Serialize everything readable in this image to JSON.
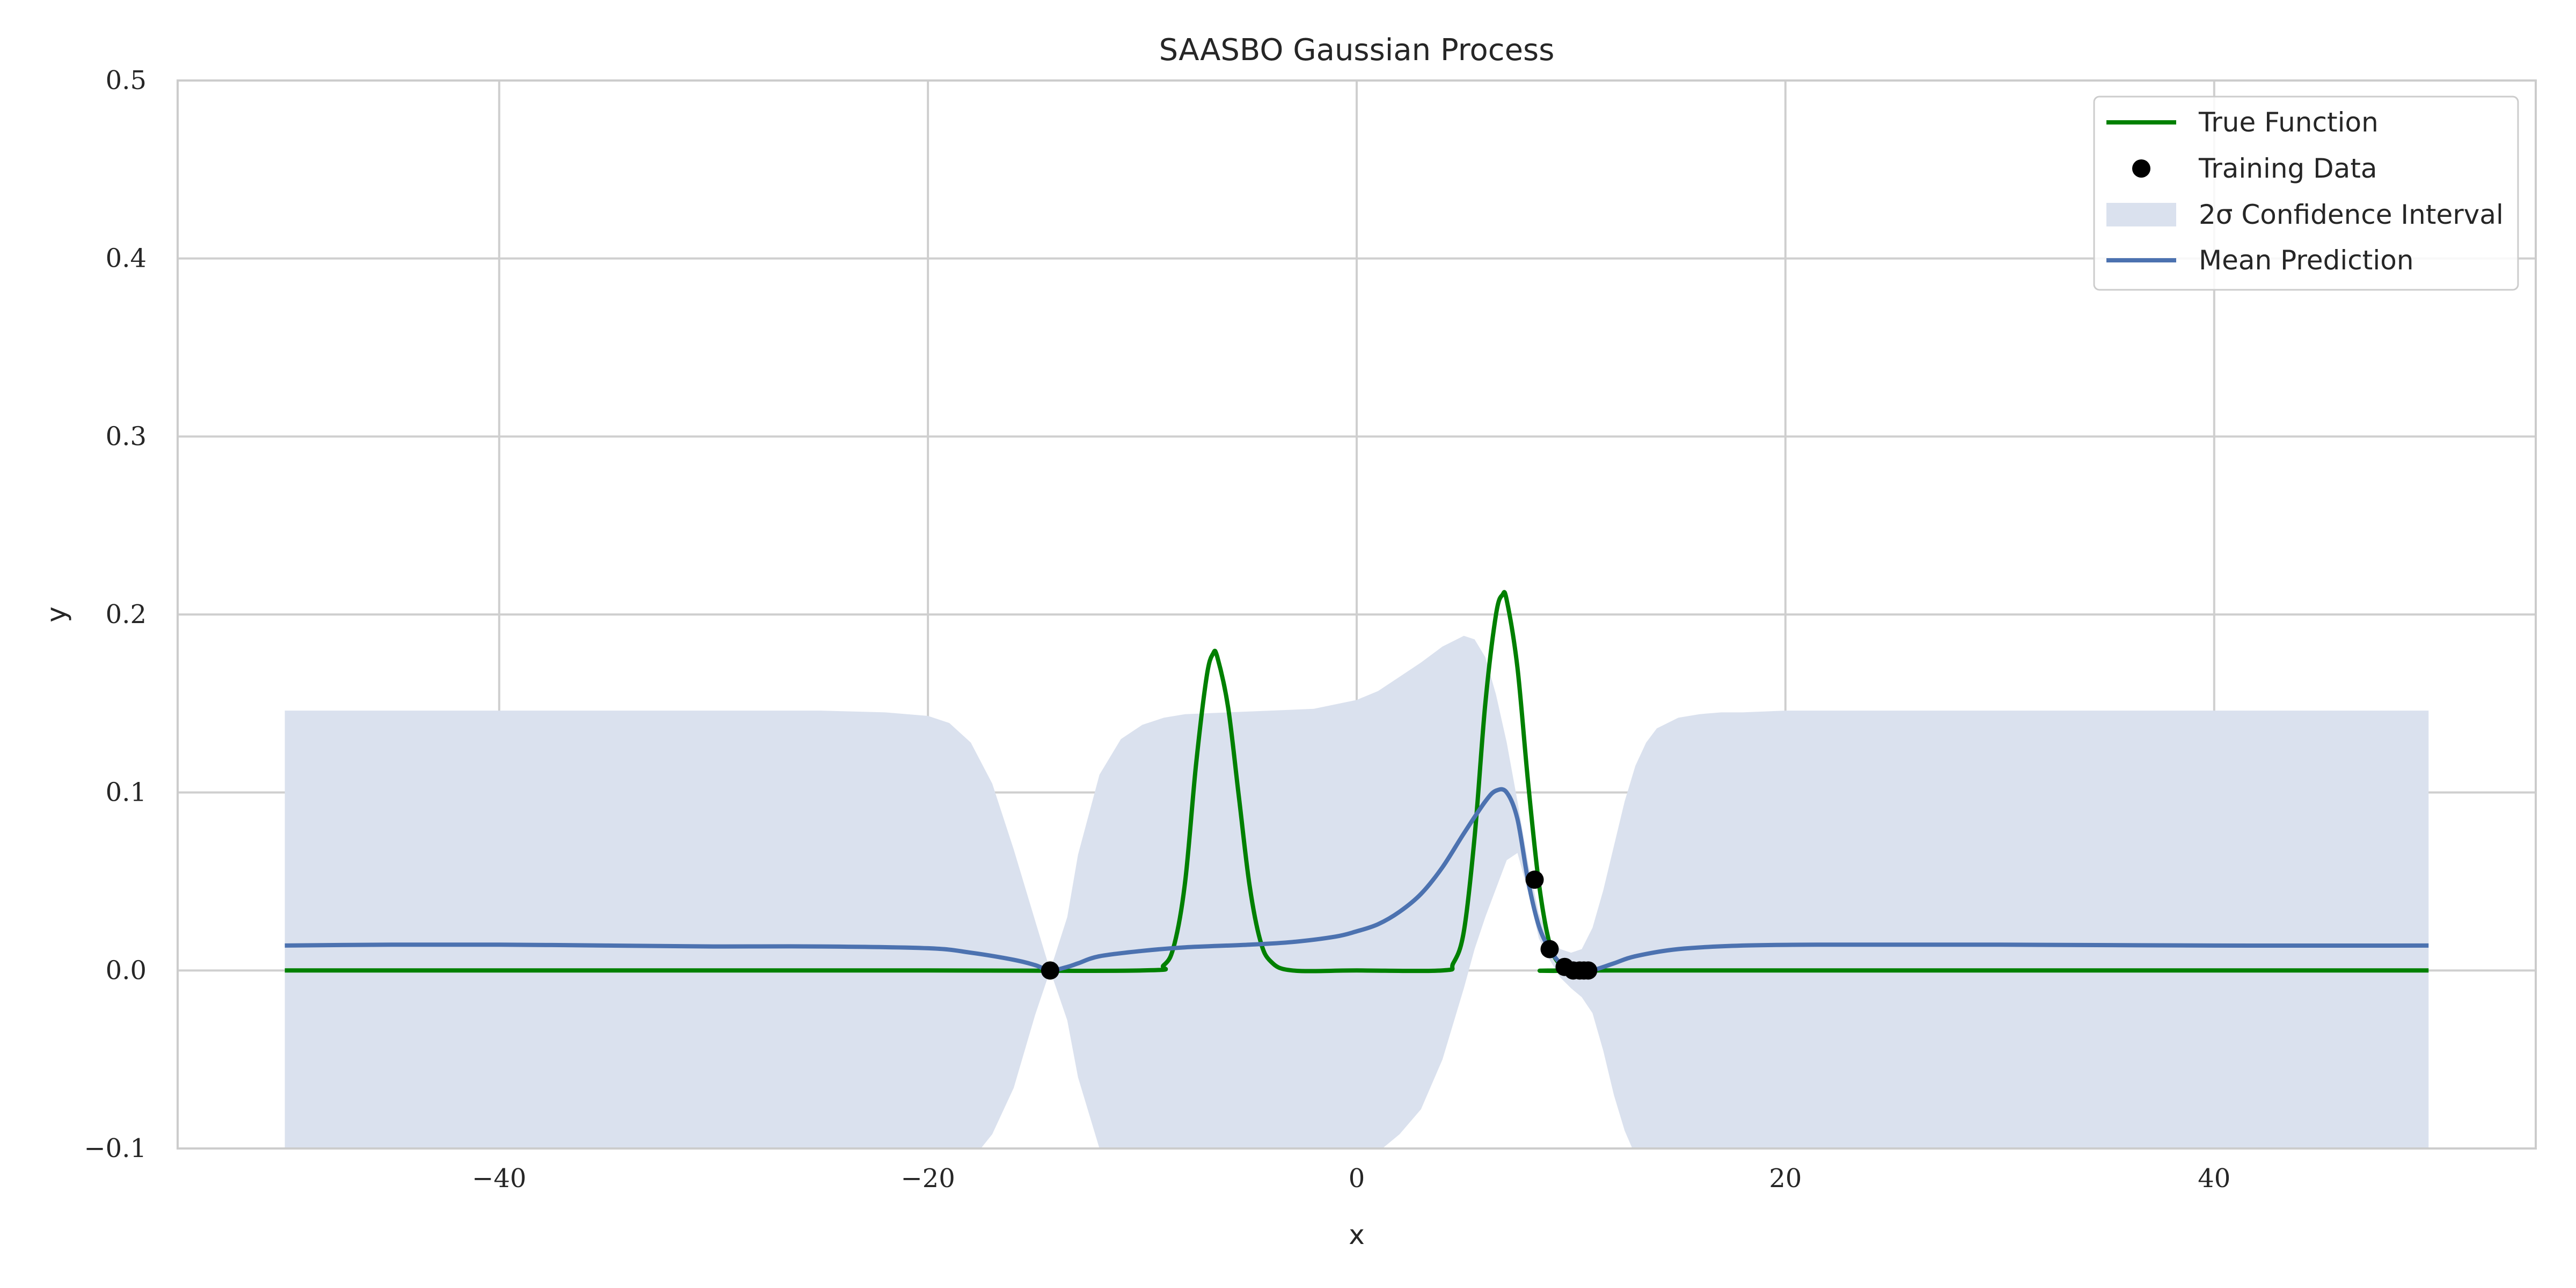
{
  "chart_data": {
    "type": "line",
    "title": "SAASBO Gaussian Process",
    "xlabel": "x",
    "ylabel": "y",
    "xlim": [
      -55,
      55
    ],
    "ylim": [
      -0.1,
      0.5
    ],
    "grid": true,
    "legend_position": "top-right",
    "x_ticks": [
      -40,
      -20,
      0,
      20,
      40
    ],
    "y_ticks": [
      -0.1,
      0.0,
      0.1,
      0.2,
      0.3,
      0.4,
      0.5
    ],
    "x_tick_labels": [
      "−40",
      "−20",
      "0",
      "20",
      "40"
    ],
    "y_tick_labels": [
      "−0.1",
      "0.0",
      "0.1",
      "0.2",
      "0.3",
      "0.4",
      "0.5"
    ],
    "colors": {
      "true_function": "#008000",
      "mean": "#4c72b0",
      "ci": "#dae1ee",
      "training": "#000000",
      "grid": "#cfcfcf",
      "spine": "#cccccc"
    },
    "legend": {
      "true_function": "True Function",
      "training": "Training Data",
      "ci": "2σ Confidence Interval",
      "mean": "Mean Prediction"
    },
    "series": [
      {
        "name": "True Function",
        "x": [
          -50,
          -20,
          -10,
          -9,
          -8.5,
          -8,
          -7.5,
          -7,
          -6.7,
          -6.5,
          -6,
          -5.5,
          -5,
          -4.5,
          -4,
          -3,
          0,
          4,
          4.5,
          5,
          5.5,
          6,
          6.5,
          6.8,
          7,
          7.5,
          8,
          8.5,
          9,
          9.5,
          10,
          12,
          50
        ],
        "y": [
          0,
          0,
          0,
          0.003,
          0.015,
          0.05,
          0.115,
          0.165,
          0.178,
          0.176,
          0.148,
          0.098,
          0.048,
          0.017,
          0.005,
          0,
          0,
          0,
          0.004,
          0.022,
          0.075,
          0.15,
          0.2,
          0.211,
          0.208,
          0.17,
          0.105,
          0.049,
          0.015,
          0.003,
          0,
          0,
          0
        ]
      },
      {
        "name": "Mean Prediction",
        "x": [
          -50,
          -45,
          -40,
          -35,
          -30,
          -25,
          -20,
          -18,
          -16,
          -15,
          -14.3,
          -13.5,
          -13,
          -12,
          -10,
          -8,
          -5,
          -3,
          -1,
          0,
          1,
          2,
          3,
          4,
          5,
          6,
          6.5,
          7,
          7.5,
          8,
          8.5,
          9,
          9.5,
          10,
          10.5,
          11,
          12,
          13,
          15,
          18,
          22,
          30,
          40,
          50
        ],
        "y": [
          0.014,
          0.0145,
          0.0145,
          0.014,
          0.0135,
          0.0135,
          0.0125,
          0.01,
          0.006,
          0.003,
          0.0,
          0.002,
          0.004,
          0.008,
          0.011,
          0.013,
          0.0145,
          0.016,
          0.019,
          0.022,
          0.026,
          0.033,
          0.043,
          0.058,
          0.077,
          0.095,
          0.101,
          0.1,
          0.085,
          0.05,
          0.025,
          0.012,
          0.004,
          0.0,
          -0.001,
          0.0,
          0.004,
          0.008,
          0.012,
          0.014,
          0.0145,
          0.0145,
          0.014,
          0.014
        ]
      },
      {
        "name": "2σ Confidence Interval",
        "x": [
          -50,
          -40,
          -30,
          -25,
          -22,
          -20,
          -19,
          -18,
          -17,
          -16,
          -15,
          -14.3,
          -13.5,
          -13,
          -12,
          -11,
          -10,
          -9,
          -8,
          -6,
          -4,
          -2,
          0,
          1,
          2,
          3,
          4,
          5,
          5.5,
          6,
          6.5,
          7,
          7.5,
          8,
          8.5,
          9,
          9.5,
          10,
          10.5,
          11,
          11.5,
          12,
          12.5,
          13,
          13.5,
          14,
          15,
          16,
          17,
          18,
          20,
          25,
          30,
          40,
          50
        ],
        "upper": [
          0.146,
          0.146,
          0.146,
          0.146,
          0.145,
          0.143,
          0.139,
          0.128,
          0.105,
          0.068,
          0.028,
          0.0,
          0.03,
          0.065,
          0.11,
          0.13,
          0.138,
          0.142,
          0.144,
          0.145,
          0.146,
          0.147,
          0.152,
          0.157,
          0.165,
          0.173,
          0.182,
          0.188,
          0.186,
          0.176,
          0.155,
          0.128,
          0.095,
          0.06,
          0.032,
          0.018,
          0.012,
          0.01,
          0.012,
          0.024,
          0.045,
          0.07,
          0.095,
          0.115,
          0.128,
          0.136,
          0.142,
          0.144,
          0.145,
          0.145,
          0.146,
          0.146,
          0.146,
          0.146,
          0.146
        ],
        "lower": [
          -0.118,
          -0.118,
          -0.118,
          -0.118,
          -0.118,
          -0.117,
          -0.115,
          -0.107,
          -0.092,
          -0.066,
          -0.025,
          0.0,
          -0.028,
          -0.06,
          -0.1,
          -0.112,
          -0.116,
          -0.116,
          -0.117,
          -0.117,
          -0.117,
          -0.115,
          -0.109,
          -0.102,
          -0.092,
          -0.078,
          -0.05,
          -0.01,
          0.012,
          0.03,
          0.046,
          0.062,
          0.066,
          0.044,
          0.018,
          0.006,
          -0.004,
          -0.01,
          -0.015,
          -0.024,
          -0.045,
          -0.07,
          -0.09,
          -0.104,
          -0.11,
          -0.114,
          -0.116,
          -0.117,
          -0.118,
          -0.118,
          -0.118,
          -0.118,
          -0.118,
          -0.118,
          -0.118
        ]
      },
      {
        "name": "Training Data",
        "x": [
          -14.3,
          8.3,
          9.0,
          9.7,
          10.1,
          10.4,
          10.6,
          10.8
        ],
        "y": [
          0.0,
          0.051,
          0.012,
          0.002,
          0.0,
          0.0,
          0.0,
          0.0
        ]
      }
    ]
  }
}
